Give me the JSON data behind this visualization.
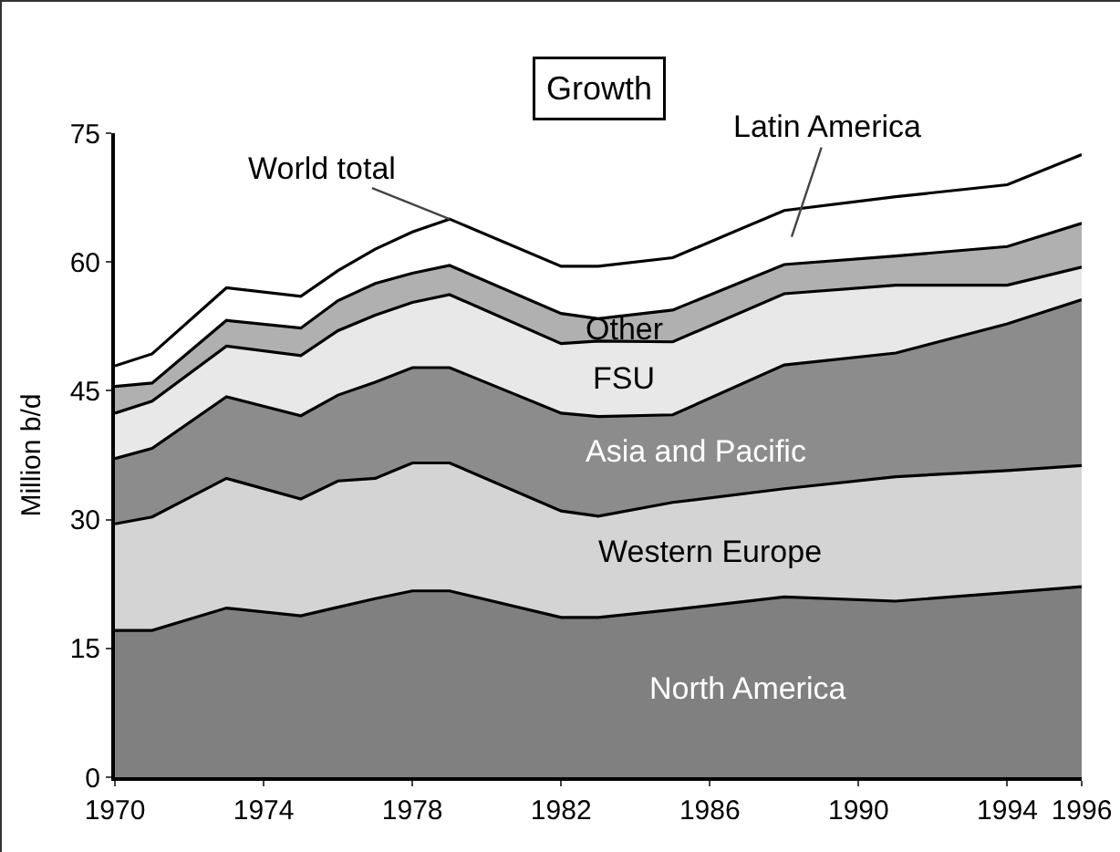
{
  "chart_data": {
    "type": "area",
    "title": "Growth",
    "ylabel": "Million b/d",
    "stacked": true,
    "grid": false,
    "legend": false,
    "x": [
      1970,
      1971,
      1973,
      1975,
      1976,
      1977,
      1978,
      1979,
      1982,
      1983,
      1985,
      1988,
      1991,
      1994,
      1996
    ],
    "series": [
      {
        "name": "North America",
        "color": "#808080",
        "values": [
          17.1,
          17.1,
          19.7,
          18.8,
          19.8,
          20.8,
          21.7,
          21.7,
          18.6,
          18.6,
          19.5,
          21.0,
          20.5,
          21.5,
          22.2
        ]
      },
      {
        "name": "Western Europe",
        "color": "#d4d4d4",
        "values": [
          12.4,
          13.2,
          15.1,
          13.6,
          14.7,
          14.0,
          14.9,
          14.9,
          12.4,
          11.8,
          12.5,
          12.6,
          14.5,
          14.2,
          14.1
        ]
      },
      {
        "name": "Asia and Pacific",
        "color": "#8c8c8c",
        "values": [
          7.6,
          8.0,
          9.5,
          9.7,
          10.0,
          11.2,
          11.1,
          11.1,
          11.4,
          11.6,
          10.2,
          14.4,
          14.4,
          17.1,
          19.3
        ]
      },
      {
        "name": "FSU",
        "color": "#e8e8e8",
        "values": [
          5.3,
          5.5,
          5.9,
          7.0,
          7.5,
          7.8,
          7.6,
          8.5,
          8.1,
          8.8,
          8.5,
          8.3,
          7.9,
          4.5,
          3.8
        ]
      },
      {
        "name": "Other",
        "color": "#b0b0b0",
        "values": [
          3.1,
          2.1,
          3.0,
          3.2,
          3.5,
          3.7,
          3.4,
          3.4,
          3.5,
          2.6,
          3.7,
          3.4,
          3.4,
          4.5,
          5.1
        ]
      },
      {
        "name": "Latin America",
        "color": "#ffffff",
        "values": [
          2.4,
          3.4,
          3.8,
          3.7,
          3.5,
          4.0,
          4.8,
          5.4,
          5.5,
          6.1,
          6.1,
          6.3,
          6.9,
          7.2,
          8.0
        ]
      }
    ],
    "annotations": [
      {
        "text": "World total",
        "x": 1979,
        "y": 65
      }
    ],
    "xlim": [
      1970,
      1996
    ],
    "xticks": [
      1970,
      1974,
      1978,
      1982,
      1986,
      1990,
      1994,
      1996
    ],
    "ylim": [
      0,
      75
    ],
    "yticks": [
      0,
      15,
      30,
      45,
      60,
      75
    ]
  }
}
